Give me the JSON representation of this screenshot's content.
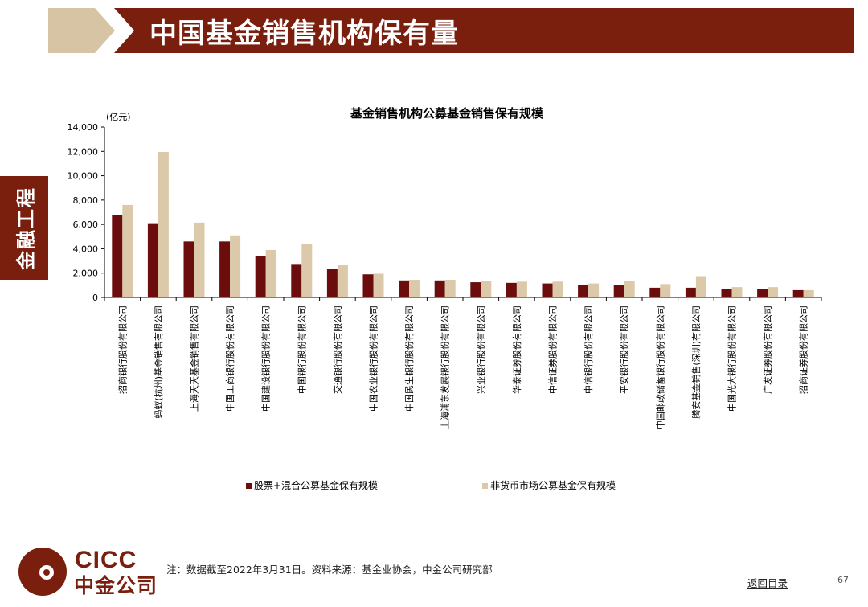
{
  "header": {
    "title": "中国基金销售机构保有量"
  },
  "side_tab": {
    "label": "金融工程"
  },
  "colors": {
    "brand": "#7a1f0e",
    "banner_tan": "#d6c4a4",
    "series_equity": "#6b0d0d",
    "series_nonmoney": "#dcc9aa"
  },
  "chart_data": {
    "type": "bar",
    "title": "基金销售机构公募基金销售保有规模",
    "ylabel": "(亿元)",
    "xlabel": "",
    "ylim": [
      0,
      14000
    ],
    "yticks": [
      "0",
      "2,000",
      "4,000",
      "6,000",
      "8,000",
      "10,000",
      "12,000",
      "14,000"
    ],
    "ytick_values": [
      0,
      2000,
      4000,
      6000,
      8000,
      10000,
      12000,
      14000
    ],
    "grid": false,
    "legend_position": "bottom",
    "categories": [
      "招商银行股份有限公司",
      "蚂蚁(杭州)基金销售有限公司",
      "上海天天基金销售有限公司",
      "中国工商银行股份有限公司",
      "中国建设银行股份有限公司",
      "中国银行股份有限公司",
      "交通银行股份有限公司",
      "中国农业银行股份有限公司",
      "中国民生银行股份有限公司",
      "上海浦东发展银行股份有限公司",
      "兴业银行股份有限公司",
      "华泰证券股份有限公司",
      "中信证券股份有限公司",
      "中信银行股份有限公司",
      "平安银行股份有限公司",
      "中国邮政储蓄银行股份有限公司",
      "腾安基金销售(深圳)有限公司",
      "中国光大银行股份有限公司",
      "广发证券股份有限公司",
      "招商证券股份有限公司"
    ],
    "series": [
      {
        "name": "股票+混合公募基金保有规模",
        "values": [
          6750,
          6100,
          4600,
          4600,
          3400,
          2750,
          2350,
          1900,
          1400,
          1400,
          1250,
          1200,
          1150,
          1050,
          1050,
          800,
          800,
          700,
          700,
          600
        ]
      },
      {
        "name": "非货币市场公募基金保有规模",
        "values": [
          7600,
          11950,
          6150,
          5100,
          3900,
          4400,
          2650,
          1950,
          1450,
          1450,
          1350,
          1300,
          1300,
          1150,
          1350,
          1100,
          1750,
          850,
          850,
          600
        ]
      }
    ]
  },
  "footer": {
    "footnote": "注：数据截至2022年3月31日。资料来源：基金业协会，中金公司研究部",
    "back_link": "返回目录",
    "page_number": "67",
    "logo_en": "CICC",
    "logo_cn": "中金公司"
  }
}
